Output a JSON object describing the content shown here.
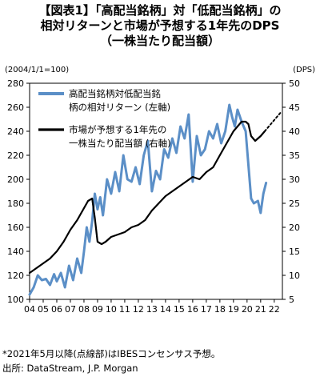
{
  "title_lines": [
    "【図表1】「高配当銘柄」対「低配当銘柄」の",
    "相対リターンと市場が予想する1年先のDPS",
    "（一株当たり配当額）"
  ],
  "footnote": "*2021年5月以降(点線部)はIBESコンセンサス予想。",
  "source": "出所: DataStream, J.P. Morgan",
  "colors": {
    "return_series": "#5b8fc7",
    "dps_series": "#000000",
    "axis": "#000000",
    "grid": "#d9d9d9"
  },
  "chart_data": {
    "type": "line",
    "left_axis_unit": "(2004/1/1=100)",
    "right_axis_unit": "(DPS)",
    "x_ticks": [
      "04",
      "05",
      "06",
      "07",
      "08",
      "09",
      "10",
      "11",
      "12",
      "13",
      "14",
      "15",
      "16",
      "17",
      "18",
      "19",
      "20",
      "21",
      "22"
    ],
    "xlim": [
      2004,
      2022.6
    ],
    "ylim_left": [
      100,
      280
    ],
    "ylim_right": [
      5,
      50
    ],
    "yticks_left": [
      100,
      120,
      140,
      160,
      180,
      200,
      220,
      240,
      260,
      280
    ],
    "yticks_right": [
      5,
      10,
      15,
      20,
      25,
      30,
      35,
      40,
      45,
      50
    ],
    "grid": false,
    "legend_position": "top-left",
    "series": [
      {
        "name": "高配当銘柄対低配当銘柄の相対リターン (左軸)",
        "axis": "left",
        "style": "solid",
        "x": [
          2004.0,
          2004.3,
          2004.6,
          2004.9,
          2005.2,
          2005.5,
          2005.8,
          2006.0,
          2006.3,
          2006.6,
          2006.9,
          2007.2,
          2007.5,
          2007.8,
          2008.0,
          2008.2,
          2008.4,
          2008.6,
          2008.8,
          2009.0,
          2009.2,
          2009.4,
          2009.7,
          2010.0,
          2010.3,
          2010.6,
          2010.9,
          2011.2,
          2011.5,
          2011.8,
          2012.1,
          2012.4,
          2012.7,
          2013.0,
          2013.3,
          2013.6,
          2013.9,
          2014.2,
          2014.5,
          2014.8,
          2015.1,
          2015.4,
          2015.7,
          2016.0,
          2016.3,
          2016.6,
          2016.9,
          2017.2,
          2017.5,
          2017.8,
          2018.1,
          2018.4,
          2018.7,
          2018.9,
          2019.1,
          2019.3,
          2019.6,
          2019.9,
          2020.1,
          2020.3,
          2020.5,
          2020.8,
          2021.0,
          2021.2,
          2021.4
        ],
        "y": [
          104,
          110,
          120,
          116,
          117,
          112,
          121,
          115,
          122,
          110,
          128,
          116,
          134,
          122,
          140,
          160,
          148,
          165,
          188,
          175,
          185,
          170,
          200,
          188,
          206,
          190,
          220,
          200,
          198,
          210,
          196,
          220,
          232,
          190,
          207,
          200,
          225,
          218,
          234,
          222,
          244,
          234,
          254,
          198,
          236,
          220,
          225,
          240,
          234,
          246,
          230,
          240,
          262,
          252,
          244,
          258,
          248,
          240,
          212,
          184,
          180,
          182,
          172,
          188,
          197
        ]
      },
      {
        "name": "市場が予想する1年先の一株当たり配当額 (右軸)",
        "axis": "right",
        "style": "solid",
        "x": [
          2004.0,
          2004.5,
          2005.0,
          2005.5,
          2006.0,
          2006.5,
          2007.0,
          2007.5,
          2008.0,
          2008.3,
          2008.6,
          2008.8,
          2009.0,
          2009.3,
          2009.6,
          2010.0,
          2010.5,
          2011.0,
          2011.5,
          2012.0,
          2012.5,
          2013.0,
          2013.5,
          2014.0,
          2014.5,
          2015.0,
          2015.5,
          2016.0,
          2016.5,
          2017.0,
          2017.5,
          2018.0,
          2018.5,
          2019.0,
          2019.3,
          2019.6,
          2019.9,
          2020.1,
          2020.3,
          2020.6,
          2021.0,
          2021.3
        ],
        "y": [
          10.5,
          11.5,
          12.5,
          13.5,
          15,
          17,
          19.5,
          21.5,
          24,
          25.5,
          26,
          22,
          17,
          16.5,
          17,
          18,
          18.5,
          19,
          20,
          20.5,
          21.5,
          23.5,
          25,
          26.5,
          27.5,
          28.5,
          29.5,
          30.5,
          30,
          31.5,
          32.5,
          35,
          37.5,
          40,
          41,
          42,
          42,
          41.5,
          39,
          38,
          39,
          40
        ]
      },
      {
        "name": "",
        "axis": "right",
        "style": "dotted",
        "x": [
          2021.3,
          2021.6,
          2021.9,
          2022.2,
          2022.5
        ],
        "y": [
          40,
          41,
          42,
          43,
          44
        ]
      }
    ]
  }
}
